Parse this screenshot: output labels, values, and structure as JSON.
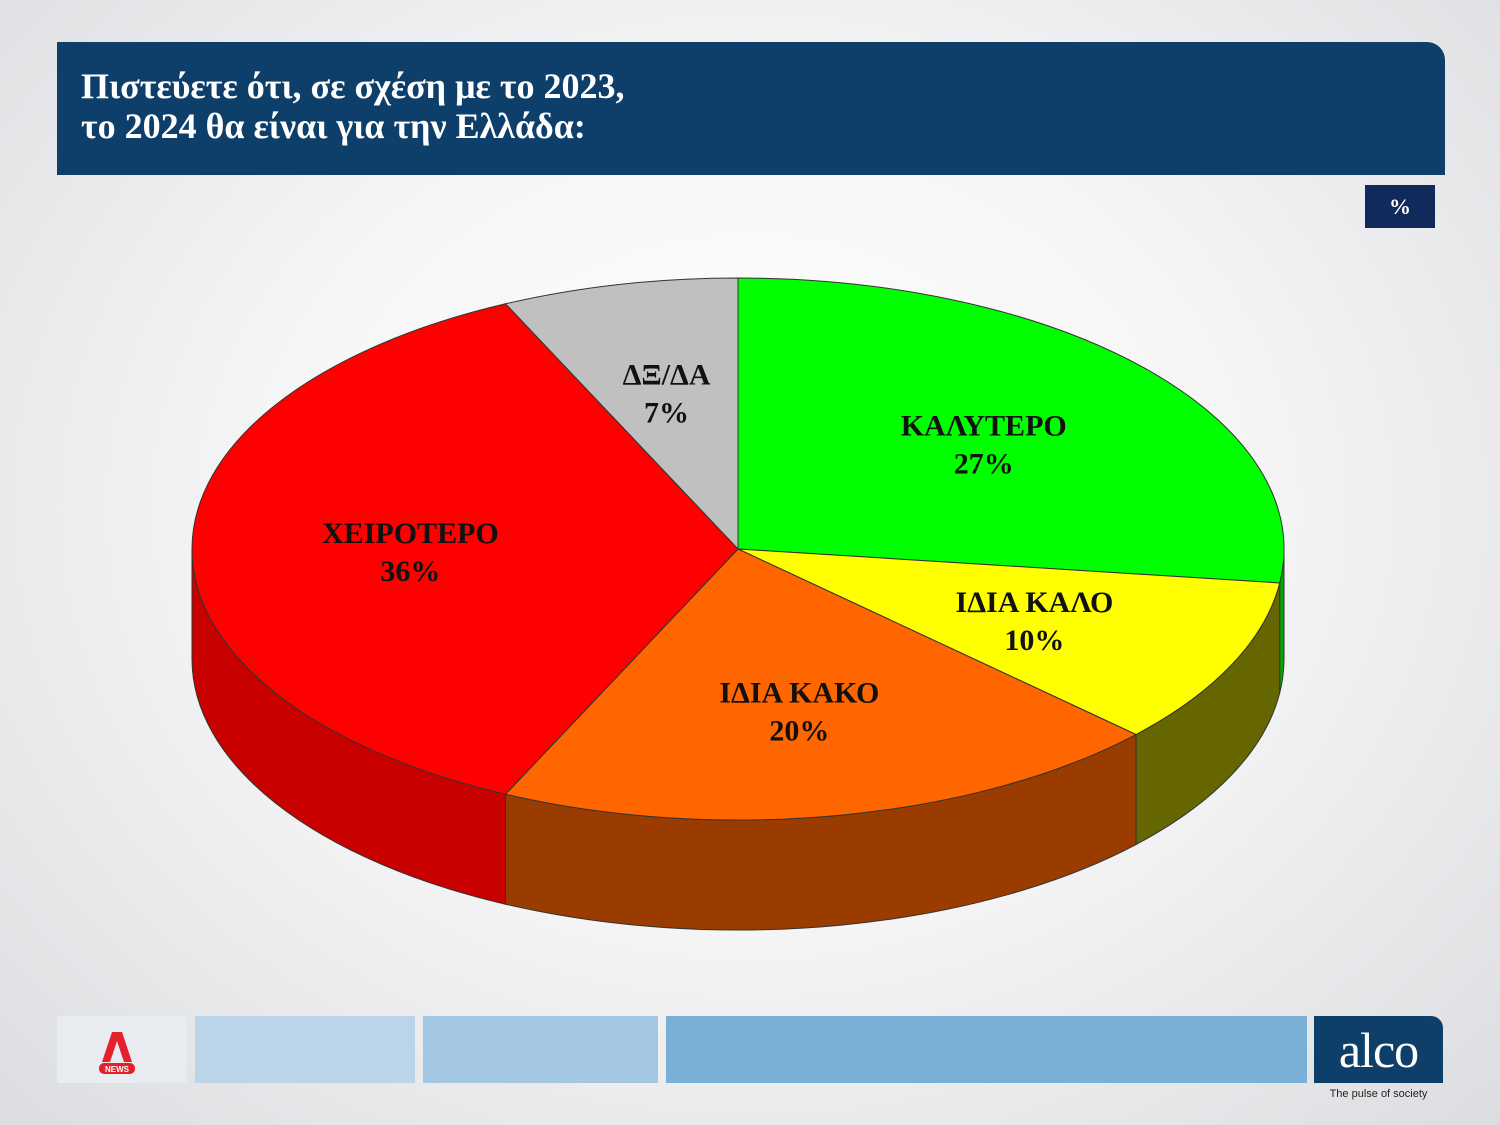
{
  "header": {
    "title_line1": "Πιστεύετε ότι, σε σχέση με το 2023,",
    "title_line2": "το 2024 θα είναι για την Ελλάδα:"
  },
  "unit_badge": "%",
  "chart_data": {
    "type": "pie",
    "title": "Πιστεύετε ότι, σε σχέση με το 2023, το 2024 θα είναι για την Ελλάδα:",
    "unit": "%",
    "style": "3d",
    "slices": [
      {
        "label": "ΚΑΛΥΤΕΡΟ",
        "value": 27,
        "value_label": "27%",
        "color": "#00ff00",
        "side_color": "#00aa00"
      },
      {
        "label": "ΙΔΙΑ ΚΑΛΟ",
        "value": 10,
        "value_label": "10%",
        "color": "#ffff00",
        "side_color": "#666600"
      },
      {
        "label": "ΙΔΙΑ ΚΑΚΟ",
        "value": 20,
        "value_label": "20%",
        "color": "#ff6600",
        "side_color": "#9a3c00"
      },
      {
        "label": "ΧΕΙΡΟΤΕΡΟ",
        "value": 36,
        "value_label": "36%",
        "color": "#ff0000",
        "side_color": "#c80000"
      },
      {
        "label": "ΔΞ/ΔΑ",
        "value": 7,
        "value_label": "7%",
        "color": "#c0c0c0",
        "side_color": "#8a8a8a"
      }
    ]
  },
  "footer": {
    "brand_alpha_text": "NEWS",
    "brand_alco": "alco",
    "brand_tagline": "The pulse of society",
    "panel_colors": [
      "#e8ecf0",
      "#bcd4e8",
      "#a3c6e2",
      "#7aafd6"
    ]
  }
}
